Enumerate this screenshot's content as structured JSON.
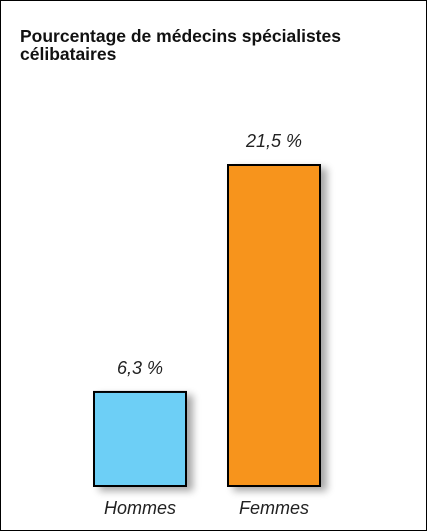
{
  "chart_data": {
    "type": "bar",
    "title": "Pourcentage de médecins spécialistes célibataires",
    "categories": [
      "Hommes",
      "Femmes"
    ],
    "values": [
      6.3,
      21.5
    ],
    "value_labels": [
      "6,3 %",
      "21,5 %"
    ],
    "colors": [
      "#6dcff6",
      "#f7941d"
    ],
    "xlabel": "",
    "ylabel": "",
    "grid": false
  }
}
